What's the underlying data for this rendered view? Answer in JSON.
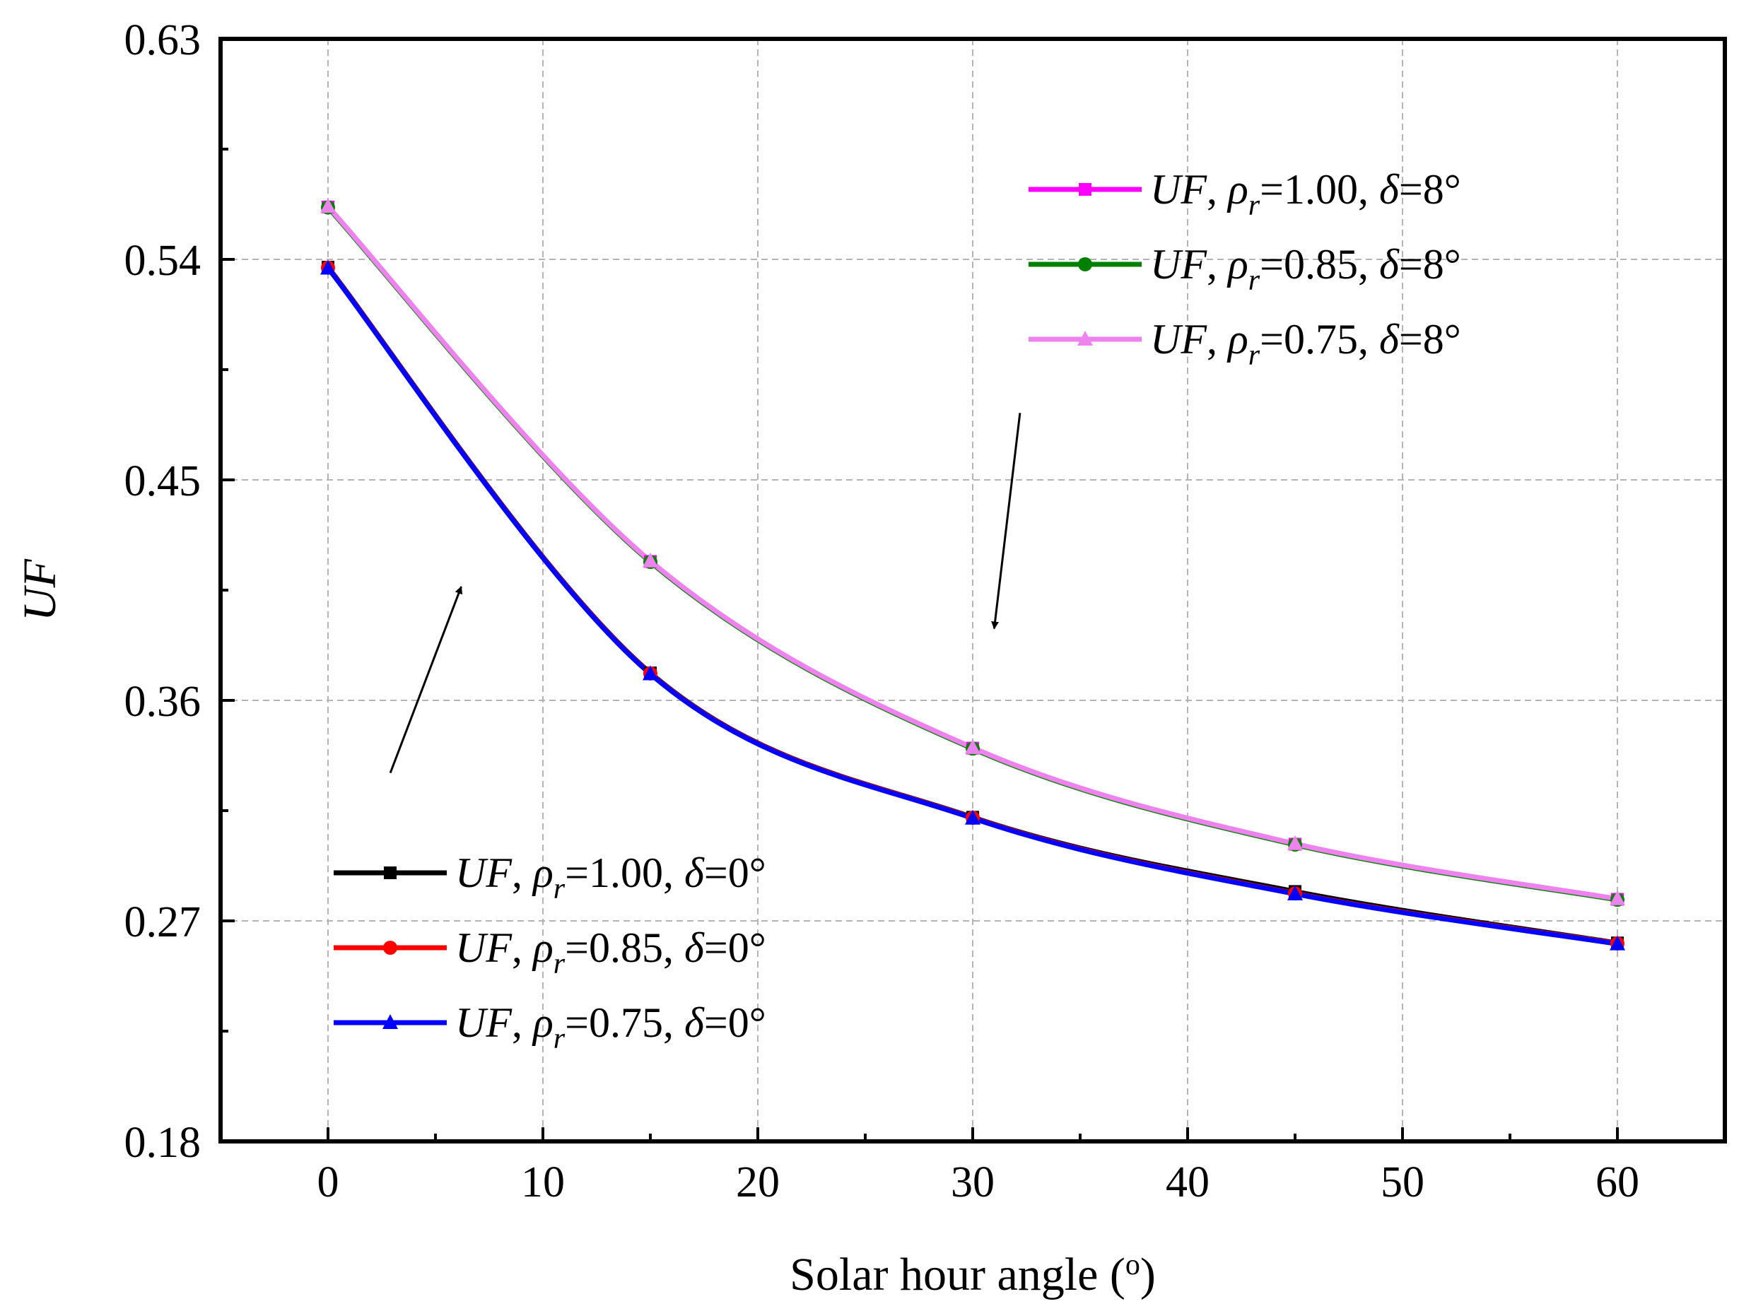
{
  "chart_data": {
    "type": "line",
    "title": "",
    "xlabel": "Solar hour angle (",
    "xlabel_sup": "o",
    "xlabel_end": ")",
    "ylabel": "UF",
    "xlim": [
      -5,
      65
    ],
    "ylim": [
      0.18,
      0.63
    ],
    "x_ticks": [
      "0",
      "10",
      "20",
      "30",
      "40",
      "50",
      "60"
    ],
    "x_tick_values": [
      0,
      10,
      20,
      30,
      40,
      50,
      60
    ],
    "y_ticks": [
      "0.18",
      "0.27",
      "0.36",
      "0.45",
      "0.54",
      "0.63"
    ],
    "y_tick_values": [
      0.18,
      0.27,
      0.36,
      0.45,
      0.54,
      0.63
    ],
    "grid": true,
    "x": [
      0,
      15,
      30,
      45,
      60
    ],
    "series": [
      {
        "name": "UF, ρr=1.00, δ=8°",
        "uf": "UF",
        "rho": "ρ",
        "sub": "r",
        "eq": "=1.00, ",
        "delta": "δ",
        "deg": "=8°",
        "color": "#ff00ff",
        "marker": "square",
        "values": [
          0.5614,
          0.4167,
          0.3405,
          0.3013,
          0.2788
        ]
      },
      {
        "name": "UF, ρr=0.85, δ=8°",
        "uf": "UF",
        "rho": "ρ",
        "sub": "r",
        "eq": "=0.85, ",
        "delta": "δ",
        "deg": "=8°",
        "color": "#008000",
        "marker": "circle",
        "values": [
          0.5612,
          0.4165,
          0.3403,
          0.3011,
          0.2786
        ]
      },
      {
        "name": "UF, ρr=0.75, δ=8°",
        "uf": "UF",
        "rho": "ρ",
        "sub": "r",
        "eq": "=0.75, ",
        "delta": "δ",
        "deg": "=8°",
        "color": "#ee82ee",
        "marker": "triangle",
        "values": [
          0.5616,
          0.4169,
          0.3407,
          0.3015,
          0.279
        ]
      },
      {
        "name": "UF, ρr=1.00, δ=0°",
        "uf": "UF",
        "rho": "ρ",
        "sub": "r",
        "eq": "=1.00, ",
        "delta": "δ",
        "deg": "=0°",
        "color": "#000000",
        "marker": "square",
        "values": [
          0.5368,
          0.3712,
          0.3123,
          0.282,
          0.261
        ]
      },
      {
        "name": "UF, ρr=0.85, δ=0°",
        "uf": "UF",
        "rho": "ρ",
        "sub": "r",
        "eq": "=0.85, ",
        "delta": "δ",
        "deg": "=0°",
        "color": "#ff0000",
        "marker": "circle",
        "values": [
          0.5366,
          0.371,
          0.3121,
          0.2812,
          0.2608
        ]
      },
      {
        "name": "UF, ρr=0.75, δ=0°",
        "uf": "UF",
        "rho": "ρ",
        "sub": "r",
        "eq": "=0.75, ",
        "delta": "δ",
        "deg": "=0°",
        "color": "#0000ff",
        "marker": "triangle",
        "values": [
          0.5364,
          0.3708,
          0.3119,
          0.281,
          0.2606
        ]
      }
    ],
    "legend_top": {
      "placement": "upper-right",
      "series_indices": [
        0,
        1,
        2
      ]
    },
    "legend_bottom": {
      "placement": "lower-left",
      "series_indices": [
        3,
        4,
        5
      ]
    },
    "annotations": [
      {
        "type": "arrow",
        "from": [
          32.2,
          0.4773
        ],
        "to": [
          31.0,
          0.3893
        ]
      },
      {
        "type": "arrow",
        "from": [
          2.9,
          0.3304
        ],
        "to": [
          6.2,
          0.4064
        ]
      }
    ]
  }
}
